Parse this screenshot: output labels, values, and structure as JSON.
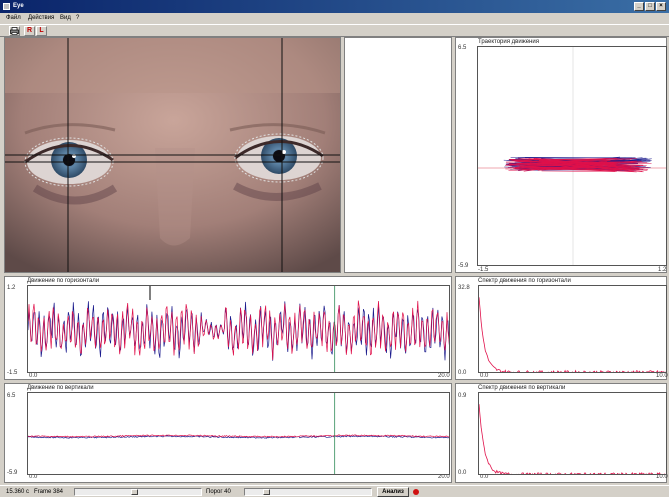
{
  "window": {
    "title": "Eye",
    "min_label": "_",
    "max_label": "□",
    "close_label": "×"
  },
  "menu": {
    "items": [
      {
        "label": "Файл"
      },
      {
        "label": "Действия"
      },
      {
        "label": "Вид"
      },
      {
        "label": "?"
      }
    ]
  },
  "toolbar": {
    "r_label": "R",
    "l_label": "L",
    "r_color": "#c00000",
    "l_color": "#c00000"
  },
  "colors": {
    "trace_blue": "#1a1a8c",
    "trace_red": "#e0104a",
    "marker_green": "#2e8b57"
  },
  "panels": {
    "trajectory": {
      "title": "Траектория движения",
      "y_top": "6.5",
      "y_bottom": "-5.9",
      "x_left": "-1.5",
      "x_right": "1.2"
    },
    "horizontal": {
      "title": "Движение по горизонтали",
      "y_top": "1.2",
      "y_bottom": "-1.5",
      "x_left": "0.0",
      "x_right": "20.0"
    },
    "vertical": {
      "title": "Движение по вертикали",
      "y_top": "6.5",
      "y_bottom": "-5.9",
      "x_left": "0.0",
      "x_right": "20.0"
    },
    "spectrum_h": {
      "title": "Спектр движения по горизонтали",
      "y_top": "32.8",
      "y_bottom": "0.0",
      "x_left": "0.0",
      "x_right": "10.0"
    },
    "spectrum_v": {
      "title": "Спектр движения по вертикали",
      "y_top": "0.9",
      "y_bottom": "0.0",
      "x_left": "0.0",
      "x_right": "10.0"
    }
  },
  "chart_data": [
    {
      "type": "scatter",
      "title": "Траектория движения",
      "xlim": [
        -1.5,
        1.2
      ],
      "ylim": [
        -5.9,
        6.5
      ]
    },
    {
      "type": "line",
      "title": "Движение по горизонтали",
      "xlim": [
        0.0,
        20.0
      ],
      "ylim": [
        -1.5,
        1.2
      ],
      "marker_x": 14.5
    },
    {
      "type": "line",
      "title": "Движение по вертикали",
      "xlim": [
        0.0,
        20.0
      ],
      "ylim": [
        -5.9,
        6.5
      ],
      "marker_x": 14.5
    },
    {
      "type": "area",
      "title": "Спектр движения по горизонтали",
      "xlim": [
        0.0,
        10.0
      ],
      "ylim": [
        0.0,
        32.8
      ]
    },
    {
      "type": "area",
      "title": "Спектр движения по вертикали",
      "xlim": [
        0.0,
        10.0
      ],
      "ylim": [
        0.0,
        0.9
      ]
    }
  ],
  "status": {
    "time": "15.360 с",
    "frame": "Frame 384",
    "threshold": "Порог 40",
    "analyze_label": "Анализ",
    "slider1_value": 0.47,
    "slider2_value": 0.15
  }
}
